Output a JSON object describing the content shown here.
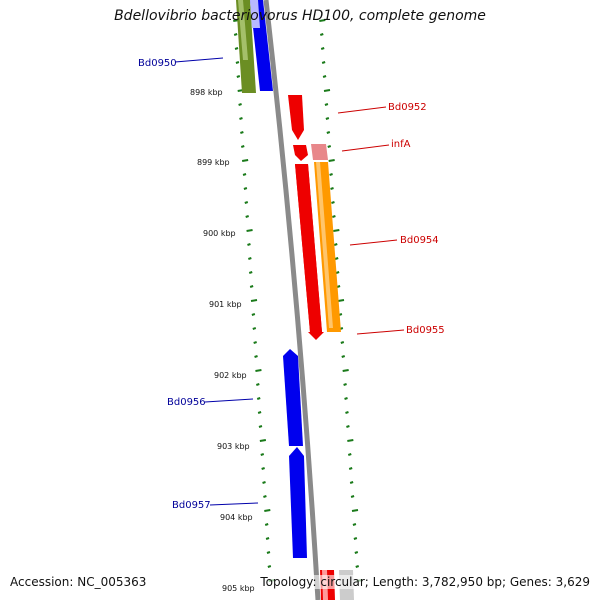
{
  "title": "Bdellovibrio bacteriovorus HD100, complete genome",
  "footer": {
    "accession": "Accession: NC_005363",
    "summary": "Topology: circular; Length: 3,782,950 bp; Genes: 3,629"
  },
  "colors": {
    "backbone": "#8a8a8a",
    "forward_strand": "#ee0000",
    "reverse_strand": "#0000ee",
    "tick_marks": "#1a7a1a",
    "forward_label": "#cc0000",
    "reverse_label": "#000099",
    "orange_gene": "#ff9900",
    "olive_gene": "#6b8e23",
    "pink_gene": "#e8878a",
    "gray_gene": "#cccccc"
  },
  "scale_labels": [
    "898 kbp",
    "899 kbp",
    "900 kbp",
    "901 kbp",
    "902 kbp",
    "903 kbp",
    "904 kbp",
    "905 kbp"
  ],
  "gene_labels": {
    "Bd0950": "Bd0950",
    "Bd0952": "Bd0952",
    "infA": "infA",
    "Bd0954": "Bd0954",
    "Bd0955": "Bd0955",
    "Bd0956": "Bd0956",
    "Bd0957": "Bd0957"
  }
}
